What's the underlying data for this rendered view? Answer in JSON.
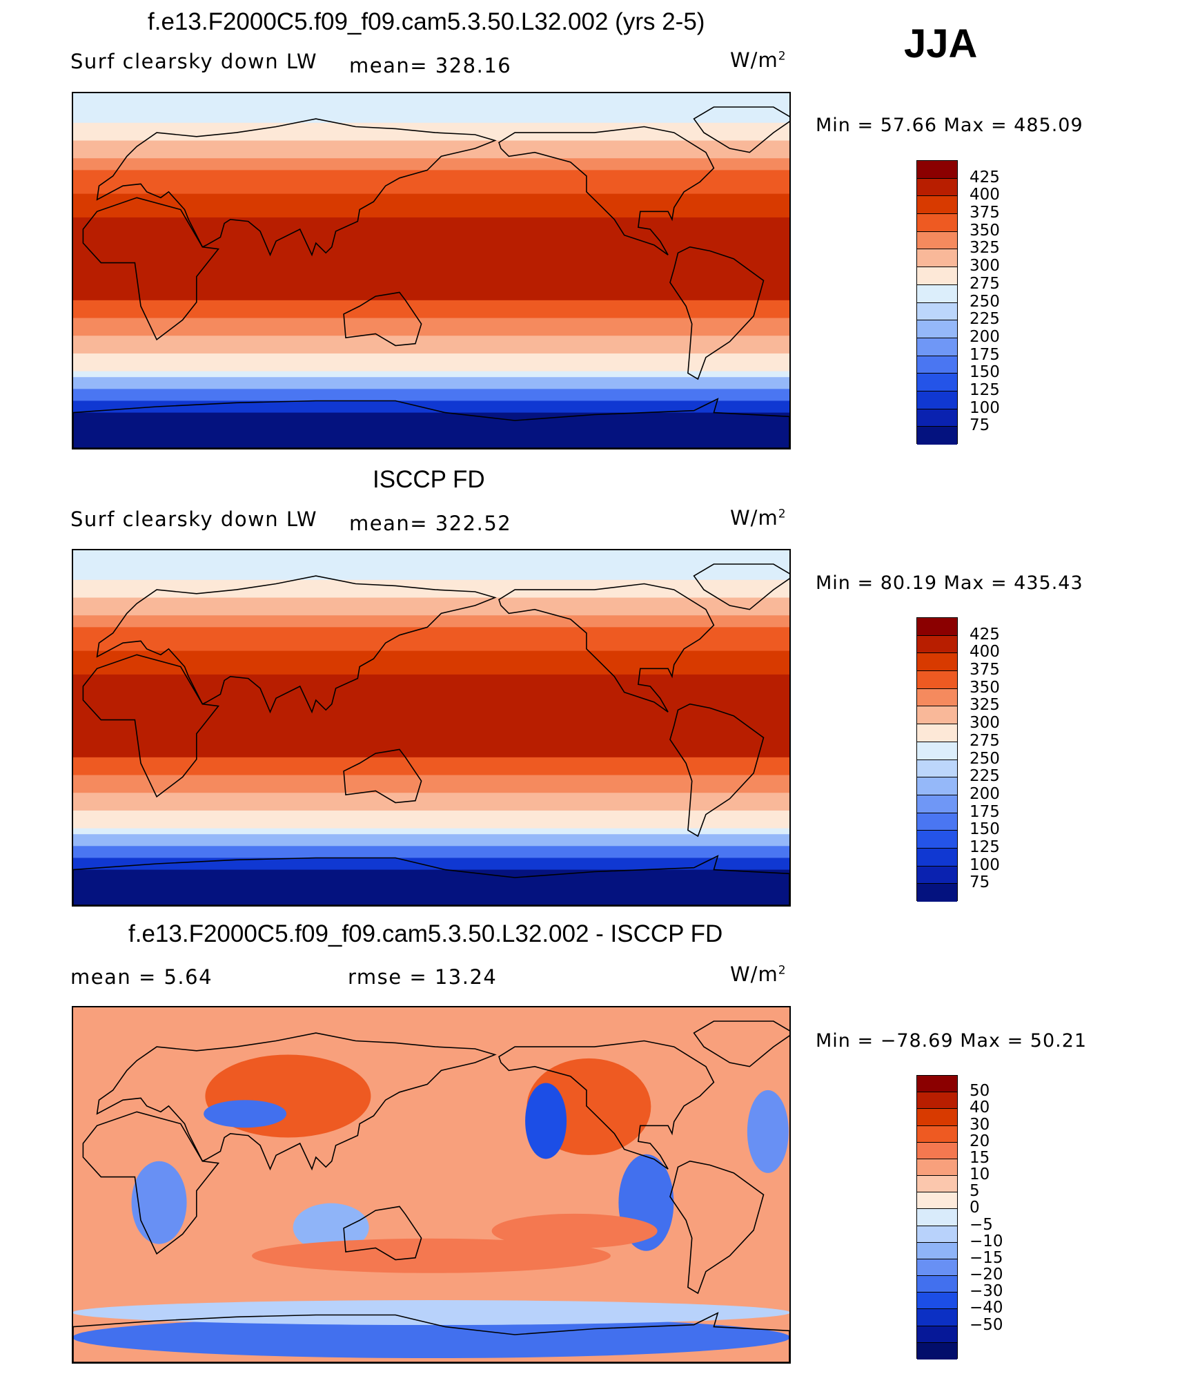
{
  "season": "JJA",
  "colors": {
    "abs_scale": [
      "#8b0000",
      "#b81e00",
      "#d83a00",
      "#ee5a22",
      "#f58a5e",
      "#f9b899",
      "#fde8d7",
      "#dceefb",
      "#bcd6fb",
      "#95b8f9",
      "#6f97f6",
      "#4a76f2",
      "#2454e8",
      "#1038d2",
      "#0a22b0",
      "#04127f"
    ],
    "diff_scale": [
      "#8b0000",
      "#b81e00",
      "#d83a00",
      "#ee5a22",
      "#f47850",
      "#f8a07c",
      "#fbc7ad",
      "#fdeadb",
      "#d9ebfb",
      "#b8d2fb",
      "#8fb4f8",
      "#6890f4",
      "#4270ee",
      "#1c4ee6",
      "#0c30c4",
      "#061898",
      "#020e6b"
    ],
    "map_border": "#000000",
    "coast": "#000000"
  },
  "panels": [
    {
      "title": "f.e13.F2000C5.f09_f09.cam5.3.50.L32.002 (yrs 2-5)",
      "left_label": "Surf  clearsky  down  LW",
      "center_label": "mean=  328.16",
      "units": "W/m",
      "units_sup": "2",
      "minmax": "Min  =    57.66  Max  =  485.09",
      "scale": "abs",
      "levels": [
        "425",
        "400",
        "375",
        "350",
        "325",
        "300",
        "275",
        "250",
        "225",
        "200",
        "175",
        "150",
        "125",
        "100",
        "75"
      ]
    },
    {
      "title": "ISCCP FD",
      "left_label": "Surf  clearsky  down  LW",
      "center_label": "mean=  322.52",
      "units": "W/m",
      "units_sup": "2",
      "minmax": "Min  =    80.19  Max  =  435.43",
      "scale": "abs",
      "levels": [
        "425",
        "400",
        "375",
        "350",
        "325",
        "300",
        "275",
        "250",
        "225",
        "200",
        "175",
        "150",
        "125",
        "100",
        "75"
      ]
    },
    {
      "title": "f.e13.F2000C5.f09_f09.cam5.3.50.L32.002 - ISCCP FD",
      "left_label": "mean  =     5.64",
      "center_label": "rmse  =    13.24",
      "units": "W/m",
      "units_sup": "2",
      "minmax": "Min  = −78.69  Max  =    50.21",
      "scale": "diff",
      "levels": [
        "50",
        "40",
        "30",
        "20",
        "15",
        "10",
        "5",
        "0",
        "−5",
        "−10",
        "−15",
        "−20",
        "−30",
        "−40",
        "−50"
      ]
    }
  ]
}
